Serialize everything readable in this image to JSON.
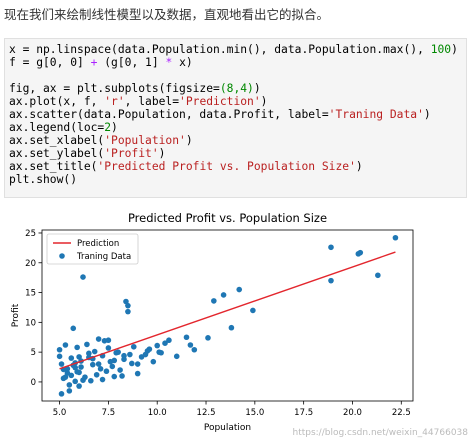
{
  "intro": {
    "text": "现在我们来绘制线性模型以及数据，直观地看出它的拟合。"
  },
  "code_lines": [
    [
      {
        "t": "x = np.linspace(data.Population.min(), data.Population.max(), "
      },
      {
        "t": "100",
        "c": "num"
      },
      {
        "t": ")"
      }
    ],
    [
      {
        "t": "f = g[0, 0] "
      },
      {
        "t": "+",
        "c": "op"
      },
      {
        "t": " (g[0, 1] "
      },
      {
        "t": "*",
        "c": "op"
      },
      {
        "t": " x)"
      }
    ],
    [],
    [
      {
        "t": "fig, ax = plt.subplots(figsize="
      },
      {
        "t": "(8,4)",
        "c": "num"
      },
      {
        "t": ")"
      }
    ],
    [
      {
        "t": "ax.plot(x, f, "
      },
      {
        "t": "'r'",
        "c": "str"
      },
      {
        "t": ", label="
      },
      {
        "t": "'Prediction'",
        "c": "str"
      },
      {
        "t": ")"
      }
    ],
    [
      {
        "t": "ax.scatter(data.Population, data.Profit, label="
      },
      {
        "t": "'Traning Data'",
        "c": "str"
      },
      {
        "t": ")"
      }
    ],
    [
      {
        "t": "ax.legend(loc="
      },
      {
        "t": "2",
        "c": "num"
      },
      {
        "t": ")"
      }
    ],
    [
      {
        "t": "ax.set_xlabel("
      },
      {
        "t": "'Population'",
        "c": "str"
      },
      {
        "t": ")"
      }
    ],
    [
      {
        "t": "ax.set_ylabel("
      },
      {
        "t": "'Profit'",
        "c": "str"
      },
      {
        "t": ")"
      }
    ],
    [
      {
        "t": "ax.set_title("
      },
      {
        "t": "'Predicted Profit vs. Population Size'",
        "c": "str"
      },
      {
        "t": ")"
      }
    ],
    [
      {
        "t": "plt.show()"
      }
    ]
  ],
  "colors": {
    "line": "#e3262d",
    "points": "#1f77b4",
    "axis": "#000000"
  },
  "watermark": "https://blog.csdn.net/weixin_44766038",
  "chart_data": {
    "type": "scatter",
    "title": "Predicted Profit vs. Population Size",
    "xlabel": "Population",
    "ylabel": "Profit",
    "xlim": [
      4.1,
      23.1
    ],
    "ylim": [
      -3.2,
      25.5
    ],
    "xticks": [
      5.0,
      7.5,
      10.0,
      12.5,
      15.0,
      17.5,
      20.0,
      22.5
    ],
    "xtick_labels": [
      "5.0",
      "7.5",
      "10.0",
      "12.5",
      "15.0",
      "17.5",
      "20.0",
      "22.5"
    ],
    "yticks": [
      0,
      5,
      10,
      15,
      20,
      25
    ],
    "ytick_labels": [
      "0",
      "5",
      "10",
      "15",
      "20",
      "25"
    ],
    "grid": false,
    "legend": {
      "position": "top-left",
      "entries": [
        "Prediction",
        "Traning Data"
      ]
    },
    "series": [
      {
        "name": "Prediction",
        "kind": "line",
        "x": [
          5.0,
          22.2
        ],
        "y": [
          2.2,
          21.8
        ]
      },
      {
        "name": "Traning Data",
        "kind": "scatter",
        "x": [
          5.0,
          5.0,
          5.1,
          5.1,
          5.2,
          5.2,
          5.3,
          5.4,
          5.5,
          5.6,
          5.7,
          5.7,
          5.8,
          5.8,
          5.9,
          5.9,
          6.0,
          6.0,
          6.1,
          6.1,
          6.2,
          6.3,
          6.4,
          6.5,
          6.6,
          6.7,
          6.8,
          6.9,
          7.0,
          7.1,
          7.2,
          7.3,
          7.4,
          7.5,
          7.6,
          7.7,
          7.8,
          7.9,
          8.0,
          8.1,
          8.2,
          8.3,
          8.4,
          8.5,
          8.6,
          8.7,
          8.8,
          9.0,
          9.2,
          9.4,
          9.6,
          9.8,
          10.0,
          10.2,
          10.4,
          10.6,
          11.0,
          11.5,
          11.7,
          11.9,
          12.6,
          12.9,
          13.4,
          13.8,
          14.2,
          14.9,
          18.9,
          18.9,
          20.3,
          20.4,
          21.3,
          22.2,
          5.3,
          5.5,
          5.8,
          6.0,
          6.2,
          6.5,
          6.7,
          7.0,
          7.2,
          7.5,
          7.8,
          8.3,
          8.5,
          9.0,
          9.5,
          10.1,
          5.4,
          5.6
        ],
        "y": [
          5.4,
          4.3,
          3.0,
          -2.0,
          0.6,
          2.1,
          6.2,
          1.5,
          -0.5,
          4.0,
          2.8,
          9.0,
          3.2,
          0.1,
          1.7,
          5.8,
          4.2,
          -0.7,
          3.5,
          2.5,
          17.6,
          0.8,
          6.3,
          4.8,
          0.2,
          3.9,
          5.1,
          1.2,
          3.0,
          2.2,
          4.4,
          6.9,
          1.8,
          7.0,
          3.4,
          2.6,
          0.9,
          4.9,
          5.0,
          2.0,
          1.0,
          3.8,
          13.5,
          11.8,
          4.6,
          3.1,
          5.9,
          1.4,
          4.2,
          4.6,
          5.5,
          3.4,
          6.1,
          4.9,
          6.5,
          7.0,
          4.3,
          7.5,
          6.2,
          5.4,
          7.4,
          13.6,
          14.6,
          9.1,
          15.5,
          12.0,
          17.0,
          22.6,
          21.5,
          21.7,
          17.9,
          24.2,
          0.8,
          -1.5,
          2.4,
          1.6,
          0.3,
          4.1,
          2.9,
          7.2,
          0.4,
          5.7,
          3.6,
          4.4,
          12.8,
          3.0,
          5.2,
          5.0,
          2.2,
          1.1
        ]
      }
    ]
  }
}
